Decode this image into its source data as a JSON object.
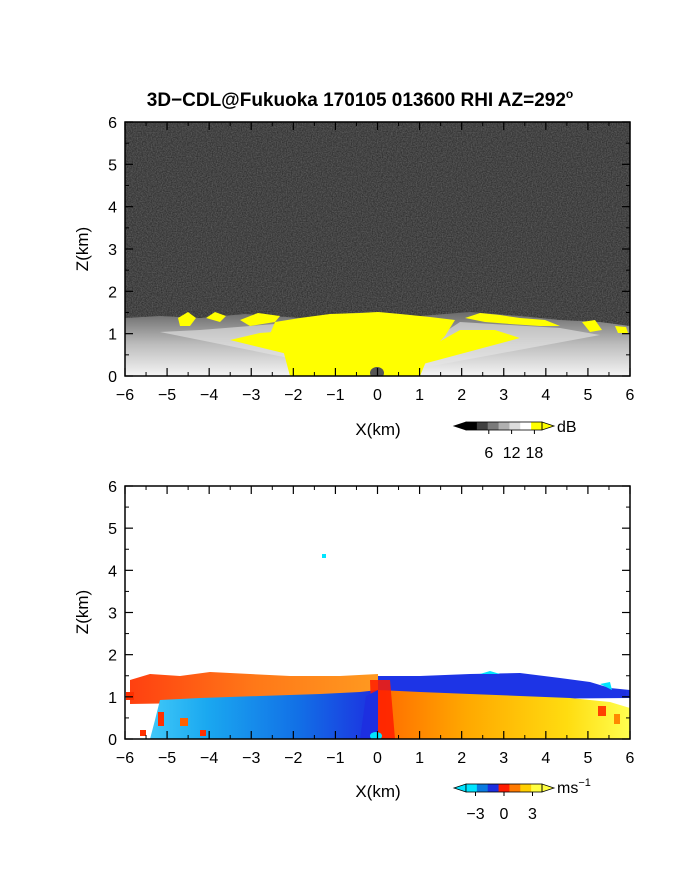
{
  "title": {
    "main": "3D−CDL@Fukuoka 170105 013600 RHI AZ=292",
    "degree": "o"
  },
  "chart_data": [
    {
      "type": "heatmap",
      "field": "backscatter intensity",
      "xlabel": "X(km)",
      "ylabel": "Z(km)",
      "xlim": [
        -6,
        6
      ],
      "ylim": [
        0,
        6
      ],
      "xticks": [
        "−6",
        "−5",
        "−4",
        "−3",
        "−2",
        "−1",
        "0",
        "1",
        "2",
        "3",
        "4",
        "5",
        "6"
      ],
      "yticks": [
        "0",
        "1",
        "2",
        "3",
        "4",
        "5",
        "6"
      ],
      "background_top_km": 1.4,
      "colorbar": {
        "unit": "dB",
        "ticks": [
          "6",
          "12",
          "18"
        ],
        "range": [
          0,
          20
        ],
        "colors": [
          "#000000",
          "#404040",
          "#7a7a7a",
          "#b0b0b0",
          "#dddddd",
          "#ffffff",
          "#ffff00"
        ]
      }
    },
    {
      "type": "heatmap",
      "field": "radial velocity",
      "xlabel": "X(km)",
      "ylabel": "Z(km)",
      "xlim": [
        -6,
        6
      ],
      "ylim": [
        0,
        6
      ],
      "xticks": [
        "−6",
        "−5",
        "−4",
        "−3",
        "−2",
        "−1",
        "0",
        "1",
        "2",
        "3",
        "4",
        "5",
        "6"
      ],
      "yticks": [
        "0",
        "1",
        "2",
        "3",
        "4",
        "5",
        "6"
      ],
      "colorbar": {
        "unit_base": "ms",
        "unit_exp": "−1",
        "ticks": [
          "−3",
          "0",
          "3"
        ],
        "range": [
          -4,
          4
        ],
        "colors": [
          "#00e5ff",
          "#0a7be0",
          "#1d2fe0",
          "#ff1c00",
          "#ff7a00",
          "#ffcf00",
          "#ffff40"
        ]
      }
    }
  ]
}
